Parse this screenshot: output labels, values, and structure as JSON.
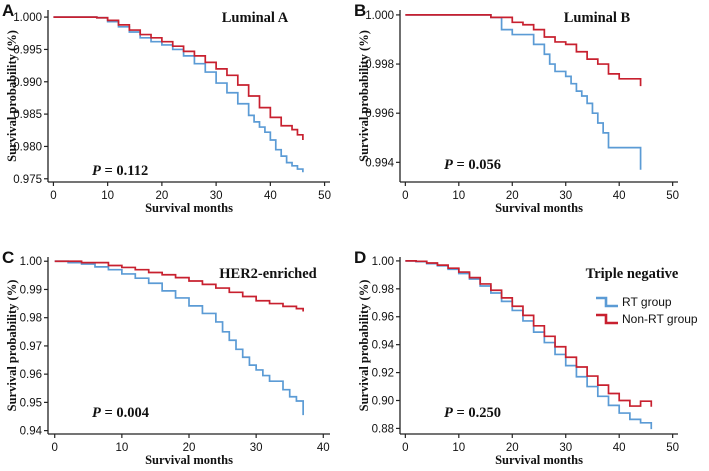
{
  "colors": {
    "rt": "#5b9bd5",
    "non_rt": "#c8202f"
  },
  "legend": {
    "rt_label": "RT group",
    "non_rt_label": "Non-RT group"
  },
  "chart_data": [
    {
      "type": "line",
      "letter": "A",
      "title": "Luminal A",
      "xlabel": "Survival months",
      "ylabel": "Survival probability (%)",
      "p_label": "P",
      "p_value": " = 0.112",
      "xlim": [
        -1,
        51
      ],
      "ylim": [
        0.9745,
        1.0011
      ],
      "xticks": [
        0,
        10,
        20,
        30,
        40,
        50
      ],
      "yticks": [
        1.0,
        0.995,
        0.99,
        0.985,
        0.98,
        0.975
      ],
      "ytick_labels": [
        "1.000",
        "0.995",
        "0.990",
        "0.985",
        "0.980",
        "0.975"
      ],
      "series": [
        {
          "name": "RT group",
          "x": [
            0,
            5,
            8,
            10,
            12,
            14,
            16,
            18,
            20,
            22,
            24,
            26,
            28,
            30,
            32,
            34,
            36,
            37,
            38,
            39,
            40,
            41,
            42,
            43,
            44,
            45,
            46
          ],
          "y": [
            1.0,
            1.0,
            0.9999,
            0.9993,
            0.9985,
            0.9977,
            0.9968,
            0.9962,
            0.9957,
            0.995,
            0.994,
            0.9928,
            0.9915,
            0.9898,
            0.9883,
            0.9866,
            0.9848,
            0.9838,
            0.983,
            0.9822,
            0.981,
            0.9795,
            0.9785,
            0.9775,
            0.977,
            0.9765,
            0.976
          ]
        },
        {
          "name": "Non-RT group",
          "x": [
            0,
            5,
            8,
            10,
            12,
            14,
            16,
            18,
            20,
            22,
            24,
            26,
            28,
            30,
            32,
            34,
            36,
            38,
            40,
            42,
            44,
            45,
            46
          ],
          "y": [
            1.0,
            1.0,
            0.9999,
            0.9995,
            0.9988,
            0.998,
            0.9973,
            0.9968,
            0.9962,
            0.9955,
            0.9947,
            0.994,
            0.993,
            0.992,
            0.991,
            0.9895,
            0.9878,
            0.986,
            0.9845,
            0.9832,
            0.9826,
            0.9818,
            0.981
          ]
        }
      ]
    },
    {
      "type": "line",
      "letter": "B",
      "title": "Luminal B",
      "xlabel": "Survival months",
      "ylabel": "Survival probability (%)",
      "p_label": "P",
      "p_value": " = 0.056",
      "xlim": [
        -1,
        51
      ],
      "ylim": [
        0.9932,
        1.0002
      ],
      "xticks": [
        0,
        10,
        20,
        30,
        40,
        50
      ],
      "yticks": [
        1.0,
        0.998,
        0.996,
        0.994
      ],
      "ytick_labels": [
        "1.000",
        "0.998",
        "0.996",
        "0.994"
      ],
      "series": [
        {
          "name": "RT group",
          "x": [
            0,
            10,
            16,
            18,
            20,
            22,
            24,
            26,
            27,
            28,
            30,
            31,
            32,
            33,
            34,
            35,
            36,
            37,
            38,
            40,
            42,
            44
          ],
          "y": [
            1.0,
            1.0,
            0.9999,
            0.9994,
            0.9992,
            0.9992,
            0.9988,
            0.9984,
            0.998,
            0.9977,
            0.9975,
            0.9972,
            0.9969,
            0.9967,
            0.9964,
            0.996,
            0.9956,
            0.9952,
            0.9946,
            0.9946,
            0.9946,
            0.9937
          ]
        },
        {
          "name": "Non-RT group",
          "x": [
            0,
            10,
            16,
            20,
            22,
            24,
            26,
            28,
            30,
            32,
            34,
            36,
            38,
            40,
            42,
            44
          ],
          "y": [
            1.0,
            1.0,
            0.9999,
            0.9997,
            0.9996,
            0.9994,
            0.9991,
            0.9989,
            0.9988,
            0.9985,
            0.9982,
            0.998,
            0.9976,
            0.9974,
            0.9974,
            0.9971
          ]
        }
      ]
    },
    {
      "type": "line",
      "letter": "C",
      "title": "HER2-enriched",
      "xlabel": "Survival months",
      "ylabel": "Survival probability (%)",
      "p_label": "P",
      "p_value": " = 0.004",
      "xlim": [
        -1,
        41
      ],
      "ylim": [
        0.9388,
        1.0015
      ],
      "xticks": [
        0,
        10,
        20,
        30,
        40
      ],
      "yticks": [
        1.0,
        0.99,
        0.98,
        0.97,
        0.96,
        0.95,
        0.94
      ],
      "ytick_labels": [
        "1.00",
        "0.99",
        "0.98",
        "0.97",
        "0.96",
        "0.95",
        "0.94"
      ],
      "series": [
        {
          "name": "RT group",
          "x": [
            0,
            2,
            4,
            6,
            8,
            10,
            12,
            14,
            16,
            18,
            20,
            22,
            24,
            25,
            26,
            27,
            28,
            29,
            30,
            31,
            32,
            34,
            35,
            36,
            37
          ],
          "y": [
            1.0,
            0.9995,
            0.999,
            0.998,
            0.997,
            0.9955,
            0.994,
            0.9922,
            0.9895,
            0.987,
            0.9842,
            0.9815,
            0.9785,
            0.975,
            0.972,
            0.9688,
            0.966,
            0.9632,
            0.9615,
            0.9595,
            0.9575,
            0.9545,
            0.952,
            0.9505,
            0.9455
          ]
        },
        {
          "name": "Non-RT group",
          "x": [
            0,
            4,
            8,
            10,
            12,
            14,
            16,
            18,
            20,
            22,
            24,
            26,
            28,
            30,
            32,
            34,
            36,
            37
          ],
          "y": [
            1.0,
            0.9995,
            0.9985,
            0.9978,
            0.997,
            0.996,
            0.9952,
            0.9942,
            0.993,
            0.9918,
            0.9905,
            0.989,
            0.9875,
            0.986,
            0.985,
            0.984,
            0.9832,
            0.9822
          ]
        }
      ]
    },
    {
      "type": "line",
      "letter": "D",
      "title": "Triple negative",
      "xlabel": "Survival months",
      "ylabel": "Survival probability (%)",
      "p_label": "P",
      "p_value": " = 0.250",
      "xlim": [
        -1,
        51
      ],
      "ylim": [
        0.876,
        1.0028
      ],
      "xticks": [
        0,
        10,
        20,
        30,
        40,
        50
      ],
      "yticks": [
        1.0,
        0.98,
        0.96,
        0.94,
        0.92,
        0.9,
        0.88
      ],
      "ytick_labels": [
        "1.00",
        "0.98",
        "0.96",
        "0.94",
        "0.92",
        "0.90",
        "0.88"
      ],
      "series": [
        {
          "name": "RT group",
          "x": [
            0,
            2,
            4,
            6,
            8,
            10,
            12,
            14,
            16,
            18,
            20,
            22,
            24,
            26,
            28,
            30,
            32,
            34,
            36,
            38,
            40,
            42,
            44,
            46
          ],
          "y": [
            1.0,
            0.9995,
            0.998,
            0.9965,
            0.994,
            0.991,
            0.987,
            0.982,
            0.977,
            0.971,
            0.9645,
            0.957,
            0.949,
            0.9415,
            0.933,
            0.925,
            0.917,
            0.91,
            0.903,
            0.8965,
            0.891,
            0.8865,
            0.884,
            0.8795
          ]
        },
        {
          "name": "Non-RT group",
          "x": [
            0,
            2,
            4,
            6,
            8,
            10,
            12,
            14,
            16,
            18,
            20,
            22,
            24,
            26,
            28,
            30,
            32,
            34,
            36,
            38,
            40,
            42,
            44,
            46
          ],
          "y": [
            1.0,
            0.9997,
            0.9985,
            0.997,
            0.9948,
            0.992,
            0.988,
            0.9835,
            0.979,
            0.9735,
            0.9675,
            0.961,
            0.9535,
            0.946,
            0.9385,
            0.931,
            0.924,
            0.9175,
            0.911,
            0.905,
            0.9,
            0.896,
            0.8995,
            0.8955
          ]
        }
      ]
    }
  ]
}
